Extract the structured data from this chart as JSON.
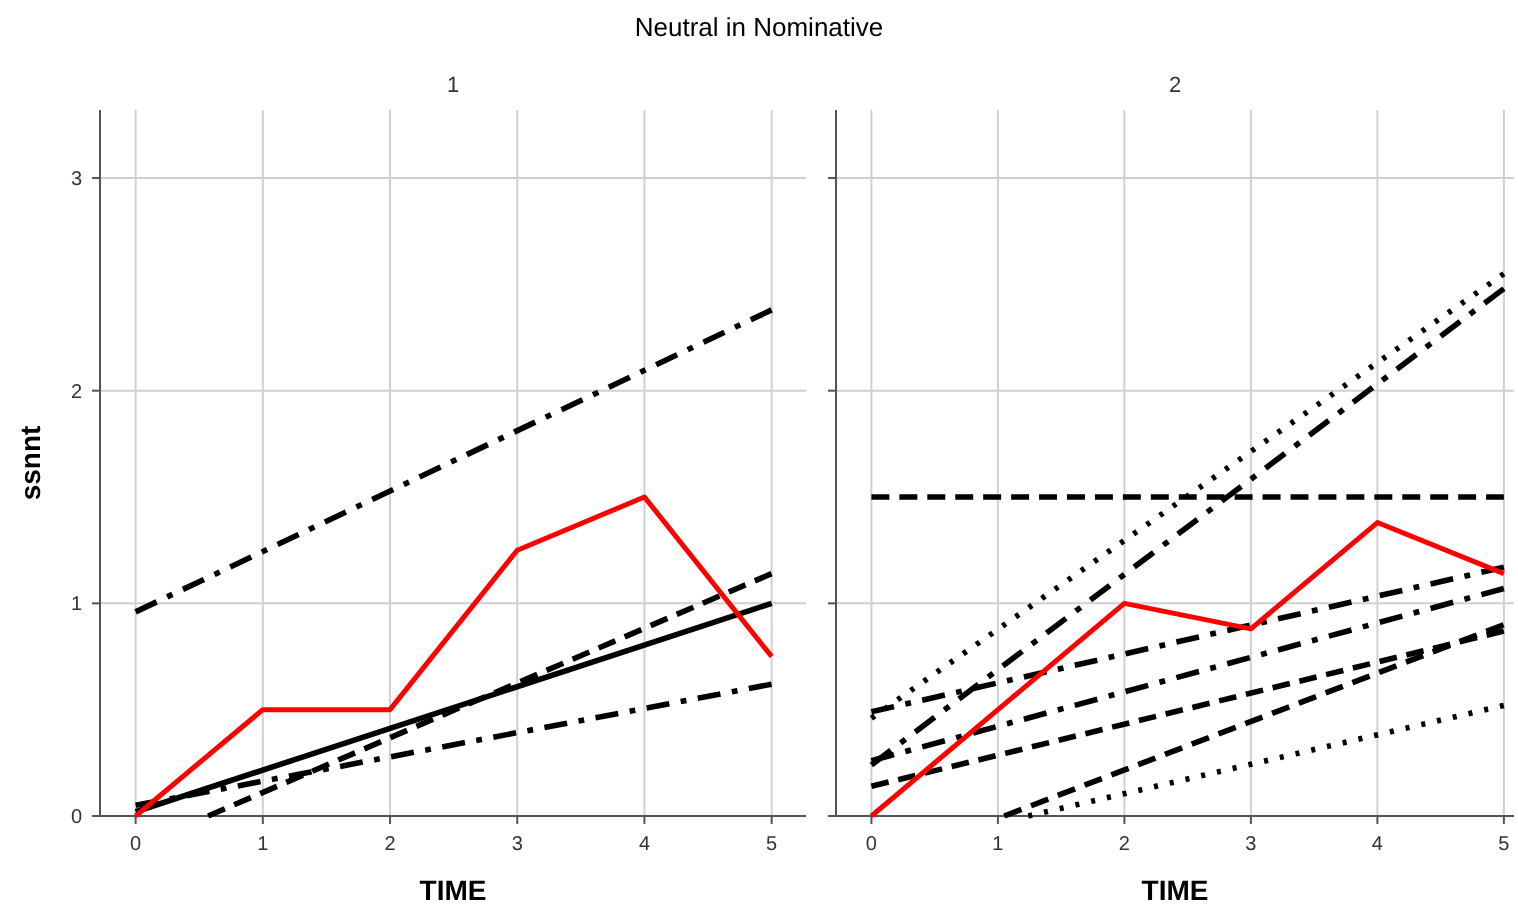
{
  "chart_data": [
    {
      "type": "line",
      "title": "Neutral in Nominative",
      "subtitle": "1",
      "xlabel": "TIME",
      "ylabel": "ssnnt",
      "xlim": [
        -0.28,
        5.27
      ],
      "ylim": [
        0,
        3.32
      ],
      "xticks": [
        0,
        1,
        2,
        3,
        4,
        5
      ],
      "yticks": [
        0,
        1,
        2,
        3
      ],
      "grid": true,
      "marker": "none",
      "series": [
        {
          "color": "#000000",
          "line_style": "dashdot",
          "x": [
            0,
            5
          ],
          "values": [
            0.96,
            2.38
          ]
        },
        {
          "color": "#000000",
          "line_style": "dashed",
          "x": [
            0.57,
            5
          ],
          "values": [
            0,
            1.14
          ]
        },
        {
          "color": "#000000",
          "line_style": "solid",
          "x": [
            0,
            5
          ],
          "values": [
            0.02,
            1.0
          ]
        },
        {
          "color": "#000000",
          "line_style": "dashdot",
          "x": [
            0,
            5
          ],
          "values": [
            0.05,
            0.62
          ]
        },
        {
          "color": "#ff0000",
          "line_style": "solid",
          "x": [
            0,
            1,
            2,
            3,
            4,
            5
          ],
          "values": [
            0,
            0.5,
            0.5,
            1.25,
            1.5,
            0.75
          ]
        }
      ]
    },
    {
      "type": "line",
      "subtitle": "2",
      "xlabel": "TIME",
      "xlim": [
        -0.28,
        5.08
      ],
      "ylim": [
        0,
        3.32
      ],
      "xticks": [
        0,
        1,
        2,
        3,
        4,
        5
      ],
      "yticks": [
        0,
        1,
        2,
        3
      ],
      "grid": true,
      "marker": "none",
      "tick_labels": "x",
      "series": [
        {
          "color": "#000000",
          "line_style": "dashed",
          "x": [
            0,
            5
          ],
          "values": [
            1.5,
            1.5
          ]
        },
        {
          "color": "#000000",
          "line_style": "dotted",
          "x": [
            0,
            5
          ],
          "values": [
            0.46,
            2.55
          ]
        },
        {
          "color": "#000000",
          "line_style": "dashdot",
          "x": [
            0,
            5
          ],
          "values": [
            0.24,
            2.48
          ]
        },
        {
          "color": "#000000",
          "line_style": "dashdot",
          "x": [
            0,
            5
          ],
          "values": [
            0.49,
            1.17
          ]
        },
        {
          "color": "#000000",
          "line_style": "dashdot",
          "x": [
            0,
            5
          ],
          "values": [
            0.26,
            1.07
          ]
        },
        {
          "color": "#000000",
          "line_style": "dashed",
          "x": [
            0,
            5
          ],
          "values": [
            0.14,
            0.87
          ]
        },
        {
          "color": "#000000",
          "line_style": "dashed",
          "x": [
            1.05,
            5
          ],
          "values": [
            0,
            0.9
          ]
        },
        {
          "color": "#000000",
          "line_style": "dotted",
          "x": [
            1.24,
            5
          ],
          "values": [
            0,
            0.52
          ]
        },
        {
          "color": "#ff0000",
          "line_style": "solid",
          "x": [
            0,
            1,
            2,
            3,
            4,
            5
          ],
          "values": [
            0,
            0.5,
            1.0,
            0.88,
            1.38,
            1.14
          ]
        }
      ]
    }
  ]
}
